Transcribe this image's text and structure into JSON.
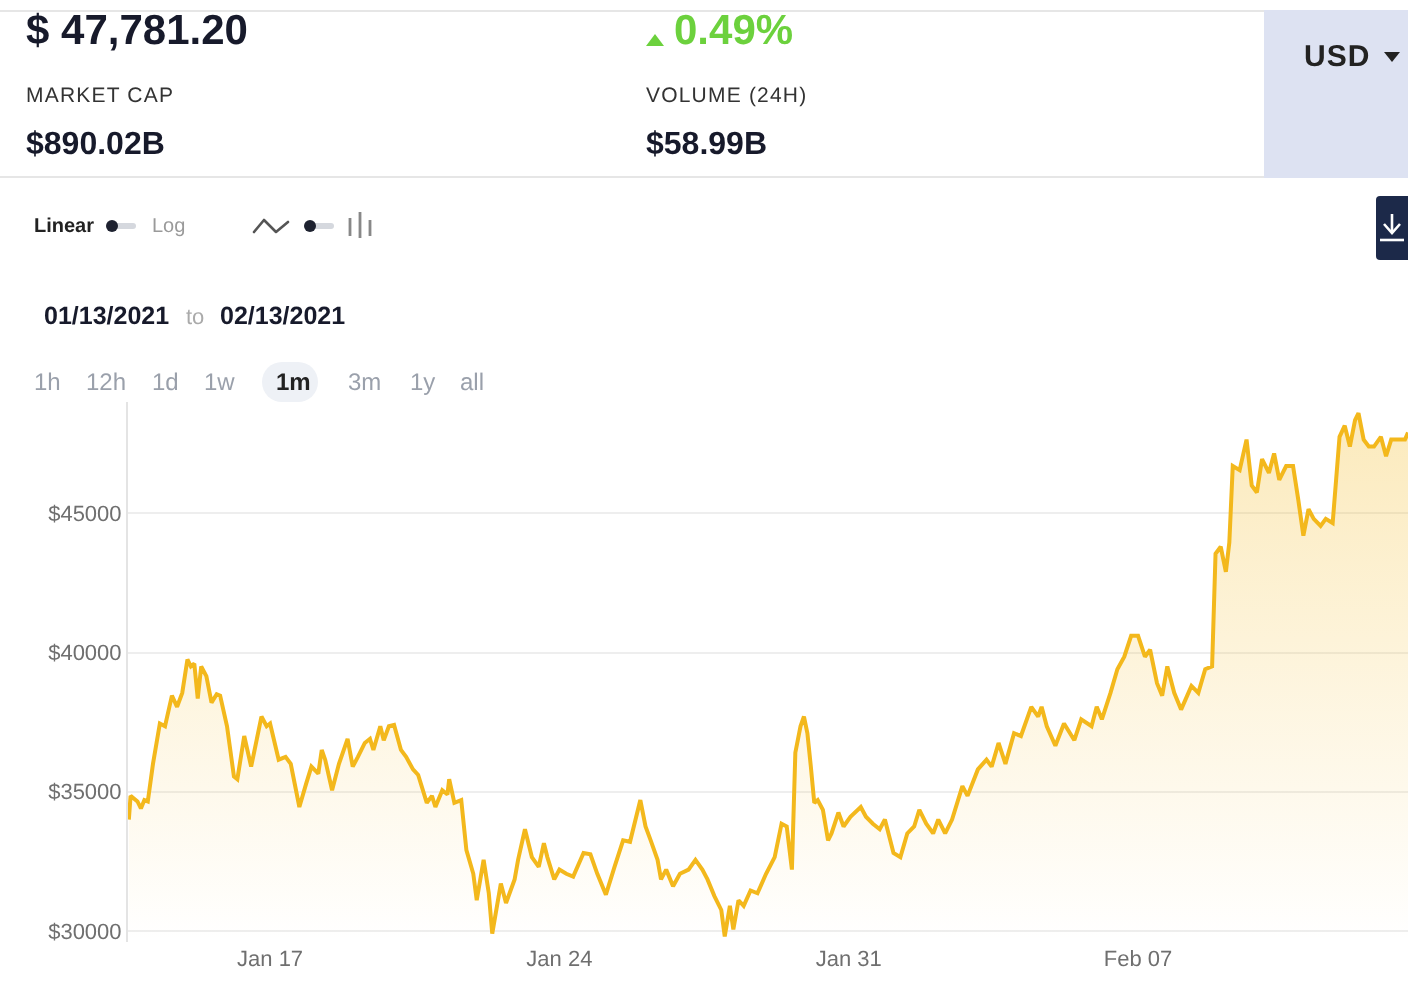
{
  "chart_data": {
    "type": "area",
    "color": "#f3b81c",
    "grid": "y",
    "xlim": [
      "2021-01-13T13:30",
      "2021-02-13T12:45"
    ],
    "xticks": [
      {
        "value": "2021-01-17",
        "label": "Jan 17"
      },
      {
        "value": "2021-01-24",
        "label": "Jan 24"
      },
      {
        "value": "2021-01-31",
        "label": "Jan 31"
      },
      {
        "value": "2021-02-07",
        "label": "Feb 07"
      }
    ],
    "ylim": [
      29600,
      49000
    ],
    "yticks": [
      {
        "value": 30000,
        "label": "$30000"
      },
      {
        "value": 35000,
        "label": "$35000"
      },
      {
        "value": 40000,
        "label": "$40000"
      },
      {
        "value": 45000,
        "label": "$45000"
      }
    ],
    "annotations": [
      "$ 47,781.20",
      "0.49%",
      "MARKET CAP",
      "$890.02B",
      "VOLUME (24H)",
      "$58.99B",
      "USD",
      "Linear",
      "Log",
      "01/13/2021",
      "to",
      "02/13/2021",
      "1h",
      "12h",
      "1d",
      "1w",
      "1m",
      "3m",
      "1y",
      "all"
    ],
    "x": [
      "2021-01-13T14:00",
      "2021-01-13T15:00",
      "2021-01-13T19:00",
      "2021-01-13T21:00",
      "2021-01-13T23:00",
      "2021-01-14T01:00",
      "2021-01-14T04:00",
      "2021-01-14T08:00",
      "2021-01-14T11:00",
      "2021-01-14T15:00",
      "2021-01-14T18:00",
      "2021-01-14T21:00",
      "2021-01-15T00:00",
      "2021-01-15T02:00",
      "2021-01-15T04:00",
      "2021-01-15T06:00",
      "2021-01-15T08:00",
      "2021-01-15T11:00",
      "2021-01-15T14:00",
      "2021-01-15T17:00",
      "2021-01-15T19:00",
      "2021-01-15T23:00",
      "2021-01-16T03:00",
      "2021-01-16T05:00",
      "2021-01-16T09:00",
      "2021-01-16T13:00",
      "2021-01-16T19:00",
      "2021-01-16T22:00",
      "2021-01-17T00:00",
      "2021-01-17T05:00",
      "2021-01-17T09:00",
      "2021-01-17T12:00",
      "2021-01-17T17:00",
      "2021-01-17T21:00",
      "2021-01-18T00:00",
      "2021-01-18T04:00",
      "2021-01-18T06:00",
      "2021-01-18T08:00",
      "2021-01-18T12:00",
      "2021-01-18T16:00",
      "2021-01-18T21:00",
      "2021-01-19T00:00",
      "2021-01-19T03:00",
      "2021-01-19T07:00",
      "2021-01-19T10:00",
      "2021-01-19T12:00",
      "2021-01-19T16:00",
      "2021-01-19T18:00",
      "2021-01-19T21:00",
      "2021-01-20T00:00",
      "2021-01-20T04:00",
      "2021-01-20T07:00",
      "2021-01-20T11:00",
      "2021-01-20T14:00",
      "2021-01-20T19:00",
      "2021-01-20T22:00",
      "2021-01-21T00:00",
      "2021-01-21T04:00",
      "2021-01-21T07:00",
      "2021-01-21T08:00",
      "2021-01-21T11:00",
      "2021-01-21T15:00",
      "2021-01-21T18:00",
      "2021-01-21T22:00",
      "2021-01-22T00:00",
      "2021-01-22T04:00",
      "2021-01-22T07:00",
      "2021-01-22T09:00",
      "2021-01-22T14:00",
      "2021-01-22T17:00",
      "2021-01-22T22:00",
      "2021-01-23T00:00",
      "2021-01-23T04:00",
      "2021-01-23T08:00",
      "2021-01-23T12:00",
      "2021-01-23T15:00",
      "2021-01-23T17:00",
      "2021-01-23T21:00",
      "2021-01-24T00:00",
      "2021-01-24T04:00",
      "2021-01-24T08:00",
      "2021-01-24T14:00",
      "2021-01-24T18:00",
      "2021-01-24T22:00",
      "2021-01-25T03:00",
      "2021-01-25T08:00",
      "2021-01-25T13:00",
      "2021-01-25T17:00",
      "2021-01-25T23:00",
      "2021-01-26T02:00",
      "2021-01-26T05:00",
      "2021-01-26T09:00",
      "2021-01-26T11:00",
      "2021-01-26T14:00",
      "2021-01-26T18:00",
      "2021-01-26T22:00",
      "2021-01-27T03:00",
      "2021-01-27T07:00",
      "2021-01-27T11:00",
      "2021-01-27T14:00",
      "2021-01-27T18:00",
      "2021-01-27T22:00",
      "2021-01-28T00:00",
      "2021-01-28T03:00",
      "2021-01-28T05:00",
      "2021-01-28T08:00",
      "2021-01-28T11:00",
      "2021-01-28T15:00",
      "2021-01-28T19:00",
      "2021-01-29T00:00",
      "2021-01-29T05:00",
      "2021-01-29T09:00",
      "2021-01-29T12:00",
      "2021-01-29T15:00",
      "2021-01-29T17:00",
      "2021-01-29T20:00",
      "2021-01-29T22:00",
      "2021-01-30T00:00",
      "2021-01-30T02:00",
      "2021-01-30T04:00",
      "2021-01-30T06:00",
      "2021-01-30T09:00",
      "2021-01-30T12:00",
      "2021-01-30T14:00",
      "2021-01-30T18:00",
      "2021-01-30T21:00",
      "2021-01-31T01:00",
      "2021-01-31T07:00",
      "2021-01-31T10:00",
      "2021-01-31T14:00",
      "2021-01-31T18:00",
      "2021-01-31T21:00",
      "2021-02-01T02:00",
      "2021-02-01T06:00",
      "2021-02-01T10:00",
      "2021-02-01T14:00",
      "2021-02-01T17:00",
      "2021-02-01T21:00",
      "2021-02-02T01:00",
      "2021-02-02T04:00",
      "2021-02-02T08:00",
      "2021-02-02T12:00",
      "2021-02-02T18:00",
      "2021-02-02T21:00",
      "2021-02-03T03:00",
      "2021-02-03T08:00",
      "2021-02-03T11:00",
      "2021-02-03T15:00",
      "2021-02-03T19:00",
      "2021-02-04T00:00",
      "2021-02-04T04:00",
      "2021-02-04T10:00",
      "2021-02-04T14:00",
      "2021-02-04T16:00",
      "2021-02-04T19:00",
      "2021-02-05T00:00",
      "2021-02-05T05:00",
      "2021-02-05T11:00",
      "2021-02-05T15:00",
      "2021-02-05T21:00",
      "2021-02-06T00:00",
      "2021-02-06T03:00",
      "2021-02-06T08:00",
      "2021-02-06T12:00",
      "2021-02-06T16:00",
      "2021-02-06T20:00",
      "2021-02-07T00:00",
      "2021-02-07T04:00",
      "2021-02-07T07:00",
      "2021-02-07T11:00",
      "2021-02-07T14:00",
      "2021-02-07T17:00",
      "2021-02-07T21:00",
      "2021-02-08T01:00",
      "2021-02-08T07:00",
      "2021-02-08T11:00",
      "2021-02-08T15:00",
      "2021-02-08T19:00",
      "2021-02-08T21:00",
      "2021-02-09T00:00",
      "2021-02-09T03:00",
      "2021-02-09T05:00",
      "2021-02-09T07:00",
      "2021-02-09T11:00",
      "2021-02-09T15:00",
      "2021-02-09T18:00",
      "2021-02-09T21:00",
      "2021-02-10T00:00",
      "2021-02-10T04:00",
      "2021-02-10T07:00",
      "2021-02-10T10:00",
      "2021-02-10T14:00",
      "2021-02-10T18:00",
      "2021-02-10T21:00",
      "2021-02-11T00:00",
      "2021-02-11T03:00",
      "2021-02-11T06:00",
      "2021-02-11T10:00",
      "2021-02-11T13:00",
      "2021-02-11T17:00",
      "2021-02-11T21:00",
      "2021-02-12T00:00",
      "2021-02-12T03:00",
      "2021-02-12T06:00",
      "2021-02-12T08:00",
      "2021-02-12T11:00",
      "2021-02-12T14:00",
      "2021-02-12T17:00",
      "2021-02-12T21:00",
      "2021-02-13T00:00",
      "2021-02-13T03:00",
      "2021-02-13T07:00",
      "2021-02-13T11:00",
      "2021-02-13T12:45"
    ],
    "values": [
      34000,
      34850,
      34650,
      34400,
      34700,
      34650,
      36000,
      37450,
      37350,
      38450,
      38050,
      38550,
      39750,
      39500,
      39600,
      38350,
      39500,
      39150,
      38200,
      38500,
      38450,
      37350,
      35550,
      35450,
      37000,
      35900,
      37700,
      37350,
      37450,
      36150,
      36250,
      36000,
      34450,
      35300,
      35900,
      35650,
      36500,
      36150,
      35050,
      36000,
      36900,
      35900,
      36250,
      36750,
      36900,
      36500,
      37350,
      36850,
      37350,
      37400,
      36500,
      36250,
      35800,
      35600,
      34600,
      34850,
      34450,
      35050,
      34900,
      35450,
      34600,
      34700,
      32900,
      32050,
      31100,
      32550,
      31350,
      29900,
      31700,
      31000,
      31850,
      32550,
      33650,
      32650,
      32300,
      33150,
      32650,
      31850,
      32200,
      32050,
      31950,
      32800,
      32750,
      32050,
      31300,
      32300,
      33250,
      33200,
      34700,
      33750,
      33250,
      32550,
      31850,
      32200,
      31600,
      32050,
      32200,
      32550,
      32200,
      31850,
      31250,
      30750,
      29800,
      30900,
      30050,
      31100,
      30900,
      31450,
      31350,
      32050,
      32650,
      33850,
      33750,
      32200,
      36400,
      37350,
      37700,
      37100,
      35900,
      34600,
      34700,
      34350,
      33250,
      33500,
      34250,
      33750,
      34100,
      34450,
      34100,
      33850,
      33650,
      34000,
      32800,
      32650,
      33500,
      33750,
      34350,
      33850,
      33500,
      34000,
      33500,
      34000,
      35200,
      34850,
      35800,
      36150,
      35900,
      36750,
      36000,
      37100,
      37000,
      38050,
      37700,
      38050,
      37350,
      36650,
      37450,
      36850,
      37600,
      37350,
      38050,
      37600,
      38550,
      39400,
      39850,
      40600,
      40600,
      39850,
      40100,
      38900,
      38450,
      39500,
      38550,
      37950,
      38800,
      38550,
      39400,
      39500,
      43550,
      43800,
      42900,
      43950,
      46700,
      46550,
      47650,
      46000,
      45750,
      46950,
      46450,
      47150,
      46200,
      46700,
      46700,
      45500,
      44200,
      45150,
      44800,
      44550,
      44800,
      44650,
      47750,
      48150,
      47400,
      48350,
      48600,
      47650,
      47400,
      47400,
      47750,
      47050,
      47650,
      47650,
      47650,
      47900
    ]
  }
}
